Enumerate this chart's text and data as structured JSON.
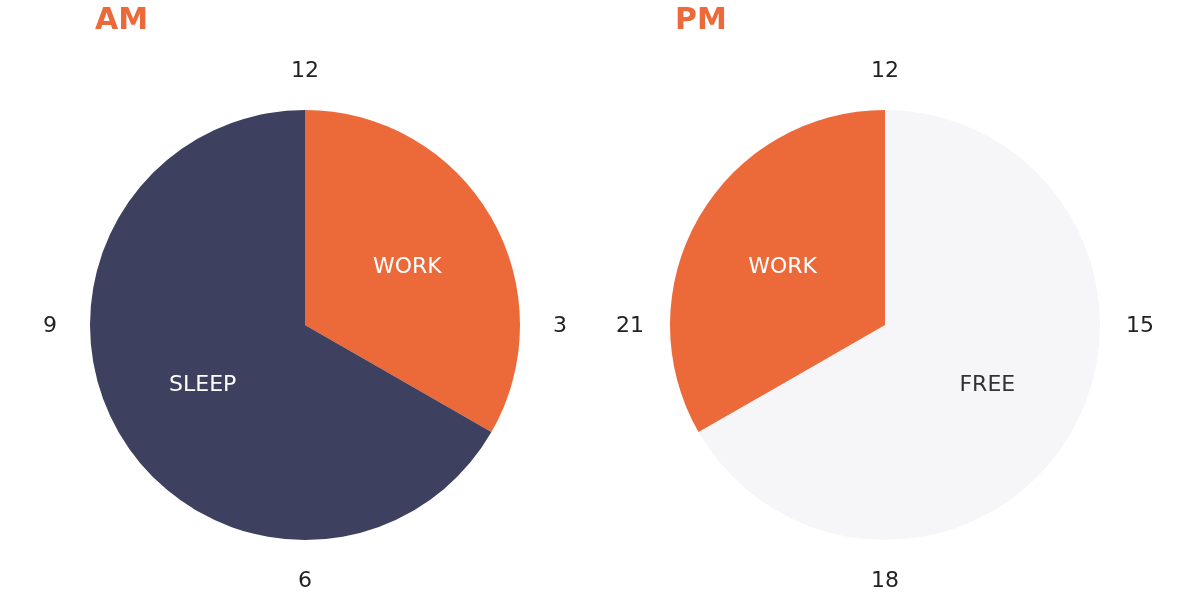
{
  "chart_data": [
    {
      "type": "pie",
      "title": "AM",
      "categories": [
        "WORK",
        "SLEEP"
      ],
      "values": [
        33.3,
        66.7
      ],
      "colors": [
        "#ec693a",
        "#3d405e"
      ],
      "annotations": [
        "12",
        "3",
        "6",
        "9"
      ],
      "legend": false
    },
    {
      "type": "pie",
      "title": "PM",
      "categories": [
        "FREE",
        "WORK"
      ],
      "values": [
        66.7,
        33.3
      ],
      "colors": [
        "#f6f6f8",
        "#ec693a"
      ],
      "annotations": [
        "12",
        "15",
        "18",
        "21"
      ],
      "legend": false
    }
  ]
}
